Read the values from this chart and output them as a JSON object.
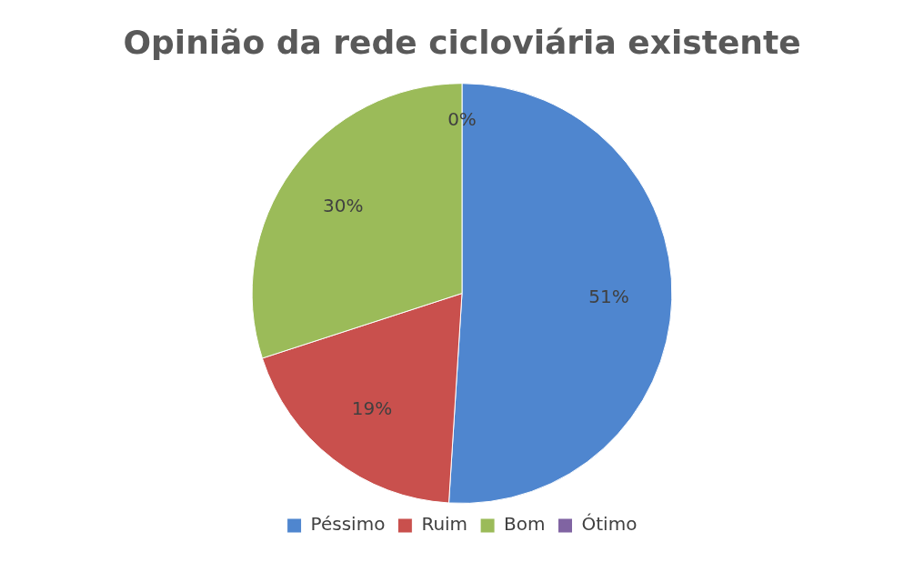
{
  "chart_data": {
    "type": "pie",
    "title": "Opinião da rede cicloviária existente",
    "categories": [
      "Péssimo",
      "Ruim",
      "Bom",
      "Ótimo"
    ],
    "values": [
      51,
      19,
      30,
      0
    ],
    "colors": [
      "#4f86cf",
      "#c9504d",
      "#9bbb59",
      "#8064a2"
    ],
    "value_labels": [
      "51%",
      "19%",
      "30%",
      "0%"
    ],
    "legend": "bottom"
  }
}
